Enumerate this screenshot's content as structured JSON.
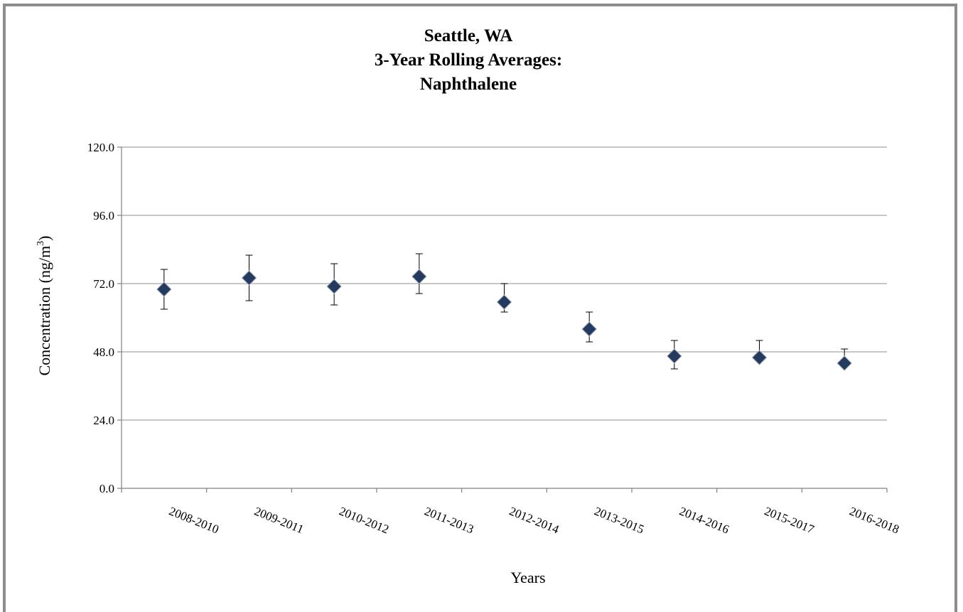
{
  "chart_data": {
    "type": "scatter",
    "title_lines": [
      "Seattle, WA",
      "3-Year Rolling Averages:",
      "Naphthalene"
    ],
    "xlabel": "Years",
    "ylabel": "Concentration (ng/m",
    "ylabel_sup": "3",
    "ylabel_tail": ")",
    "ylim": [
      0,
      120
    ],
    "yticks": [
      "0.0",
      "24.0",
      "48.0",
      "72.0",
      "96.0",
      "120.0"
    ],
    "ytick_values": [
      0,
      24,
      48,
      72,
      96,
      120
    ],
    "grid": true,
    "marker": "diamond",
    "marker_color": "#243a5e",
    "categories": [
      "2008-2010",
      "2009-2011",
      "2010-2012",
      "2011-2013",
      "2012-2014",
      "2013-2015",
      "2014-2016",
      "2015-2017",
      "2016-2018"
    ],
    "series": [
      {
        "values": [
          70.0,
          74.0,
          71.0,
          74.5,
          65.5,
          56.0,
          46.5,
          46.0,
          44.0
        ],
        "error_upper": [
          77.0,
          82.0,
          79.0,
          82.5,
          72.0,
          62.0,
          52.0,
          52.0,
          49.0
        ],
        "error_lower": [
          63.0,
          66.0,
          64.5,
          68.5,
          62.0,
          51.5,
          42.0,
          46.0,
          44.0
        ]
      }
    ]
  }
}
